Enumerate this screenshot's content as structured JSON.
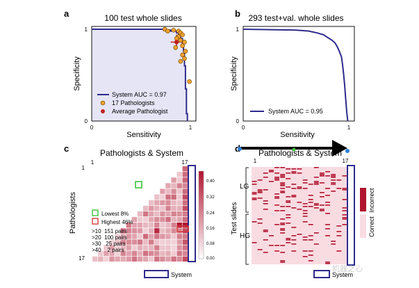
{
  "chart_data": [
    {
      "panel": "a",
      "type": "line",
      "title": "100 test whole slides",
      "xlabel": "Sensitivity",
      "ylabel": "Specificity",
      "xlim": [
        0,
        1
      ],
      "ylim": [
        0,
        1
      ],
      "x_ticks": [
        "0",
        "1"
      ],
      "y_ticks": [
        "0",
        "1"
      ],
      "roc": {
        "name": "System AUC = 0.97",
        "color": "#2e2a8c",
        "fill": "#e6e5f6",
        "points": [
          [
            0,
            1
          ],
          [
            0.73,
            1
          ],
          [
            0.73,
            0.99
          ],
          [
            0.8,
            0.99
          ],
          [
            0.8,
            0.98
          ],
          [
            0.86,
            0.98
          ],
          [
            0.86,
            0.96
          ],
          [
            0.88,
            0.96
          ],
          [
            0.88,
            0.94
          ],
          [
            0.9,
            0.94
          ],
          [
            0.9,
            0.9
          ],
          [
            0.92,
            0.9
          ],
          [
            0.92,
            0.84
          ],
          [
            0.93,
            0.84
          ],
          [
            0.93,
            0.76
          ],
          [
            0.94,
            0.76
          ],
          [
            0.94,
            0.6
          ],
          [
            0.95,
            0.6
          ],
          [
            0.95,
            0.35
          ],
          [
            0.96,
            0.35
          ],
          [
            0.96,
            0.08
          ],
          [
            0.97,
            0.08
          ],
          [
            0.97,
            0
          ]
        ]
      },
      "pathologists": {
        "name": "17 Pathologists",
        "color": "#f0a030",
        "points": [
          [
            0.74,
            1.0
          ],
          [
            0.77,
            0.98
          ],
          [
            0.83,
            0.99
          ],
          [
            0.88,
            0.98
          ],
          [
            0.9,
            0.96
          ],
          [
            0.92,
            0.94
          ],
          [
            0.88,
            0.92
          ],
          [
            0.86,
            0.9
          ],
          [
            0.9,
            0.88
          ],
          [
            0.94,
            0.86
          ],
          [
            0.92,
            0.82
          ],
          [
            0.85,
            0.8
          ],
          [
            0.95,
            0.76
          ],
          [
            0.92,
            0.72
          ],
          [
            0.94,
            0.68
          ],
          [
            0.9,
            0.65
          ],
          [
            0.99,
            0.43
          ]
        ]
      },
      "average": {
        "name": "Average Pathologist",
        "color": "#c0201e",
        "point": [
          0.86,
          0.86
        ],
        "x_err": [
          0.8,
          0.92
        ],
        "y_err": [
          0.78,
          0.94
        ]
      },
      "legend_position": "lower-left"
    },
    {
      "panel": "b",
      "type": "line",
      "title": "293 test+val. whole slides",
      "xlabel": "Sensitivity",
      "ylabel": "Specificity",
      "xlim": [
        0,
        1
      ],
      "ylim": [
        0,
        1
      ],
      "x_ticks": [
        "0",
        "1"
      ],
      "y_ticks": [
        "0",
        "1"
      ],
      "roc": {
        "name": "System AUC = 0.95",
        "color": "#2e2a8c",
        "points": [
          [
            0,
            1
          ],
          [
            0.5,
            0.99
          ],
          [
            0.62,
            0.98
          ],
          [
            0.7,
            0.96
          ],
          [
            0.76,
            0.94
          ],
          [
            0.8,
            0.91
          ],
          [
            0.84,
            0.88
          ],
          [
            0.87,
            0.85
          ],
          [
            0.89,
            0.81
          ],
          [
            0.91,
            0.76
          ],
          [
            0.93,
            0.7
          ],
          [
            0.94,
            0.62
          ],
          [
            0.95,
            0.52
          ],
          [
            0.96,
            0.4
          ],
          [
            0.97,
            0.25
          ],
          [
            0.98,
            0.1
          ],
          [
            0.99,
            0
          ]
        ]
      },
      "legend_position": "lower-left"
    },
    {
      "panel": "c",
      "type": "heatmap",
      "title": "Pathologists & System",
      "ylabel": "Pathologists",
      "tick_labels": [
        "1",
        "17"
      ],
      "matrix_size": 17,
      "colorbar_ticks": [
        "0.40",
        "0.32",
        "0.24",
        "0.16",
        "0.08",
        "0.00"
      ],
      "colorbar_range": [
        0,
        0.44
      ],
      "color_low": "#ffffff",
      "color_high": "#b0142f",
      "legend": {
        "lowest": "Lowest 8%",
        "highest": "Highest 46%",
        "lowest_color": "#3bc43b",
        "highest_color": "#d43a3a"
      },
      "pair_counts": [
        ">10  151 pairs",
        ">20  100 pairs",
        ">30   25 pairs",
        ">40    2 pairs"
      ],
      "system_label": "System"
    },
    {
      "panel": "d",
      "type": "heatmap",
      "title": "Pathologists & System",
      "ylabel": "Test slides",
      "tick_labels": [
        "1",
        "17"
      ],
      "row_groups": [
        "LG",
        "HG"
      ],
      "legend": [
        {
          "label": "Incorrect",
          "color": "#b0142f"
        },
        {
          "label": "Correct",
          "color": "#f9dce2"
        }
      ],
      "system_label": "System",
      "watermark": "机器之心"
    }
  ],
  "panel_letters": [
    "a",
    "b",
    "c",
    "d"
  ]
}
